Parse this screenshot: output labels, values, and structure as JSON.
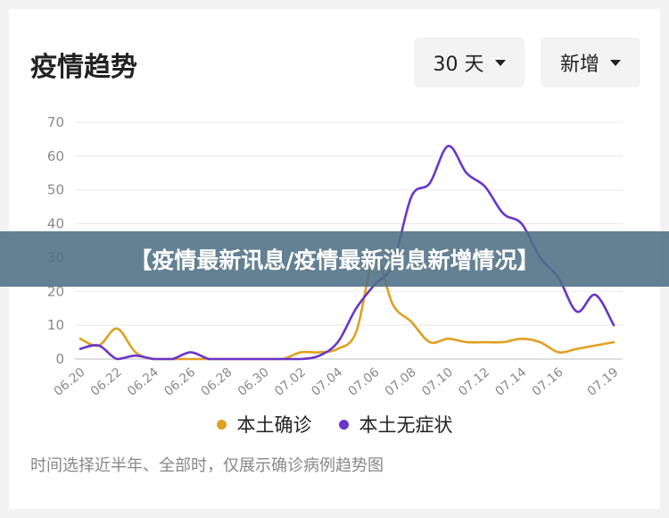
{
  "header": {
    "title": "疫情趋势",
    "range_dropdown": "30 天",
    "metric_dropdown": "新增"
  },
  "banner": {
    "text": "【疫情最新讯息/疫情最新消息新增情况】"
  },
  "footnote": "时间选择近半年、全部时，仅展示确诊病例趋势图",
  "colors": {
    "local_confirmed": "#e0a020",
    "local_asymptomatic": "#6a35c9"
  },
  "chart_data": {
    "type": "line",
    "title": "",
    "xlabel": "",
    "ylabel": "",
    "ylim": [
      0,
      70
    ],
    "yticks": [
      0,
      10,
      20,
      30,
      40,
      50,
      60,
      70
    ],
    "grid": true,
    "legend_position": "bottom",
    "x": [
      "06.20",
      "06.21",
      "06.22",
      "06.23",
      "06.24",
      "06.25",
      "06.26",
      "06.27",
      "06.28",
      "06.29",
      "06.30",
      "07.01",
      "07.02",
      "07.03",
      "07.04",
      "07.05",
      "07.06",
      "07.07",
      "07.08",
      "07.09",
      "07.10",
      "07.11",
      "07.12",
      "07.13",
      "07.14",
      "07.15",
      "07.16",
      "07.17",
      "07.18",
      "07.19"
    ],
    "xtick_labels": [
      "06.20",
      "06.22",
      "06.24",
      "06.26",
      "06.28",
      "06.30",
      "07.02",
      "07.04",
      "07.06",
      "07.08",
      "07.10",
      "07.12",
      "07.14",
      "07.16",
      "07.19"
    ],
    "series": [
      {
        "name": "本土确诊",
        "color": "#e0a020",
        "values": [
          6,
          4,
          9,
          2,
          0,
          0,
          0,
          0,
          0,
          0,
          0,
          0,
          2,
          2,
          3,
          8,
          30,
          16,
          11,
          5,
          6,
          5,
          5,
          5,
          6,
          5,
          2,
          3,
          4,
          5
        ]
      },
      {
        "name": "本土无症状",
        "color": "#6a35c9",
        "values": [
          3,
          4,
          0,
          1,
          0,
          0,
          2,
          0,
          0,
          0,
          0,
          0,
          0,
          1,
          5,
          15,
          22,
          28,
          48,
          52,
          63,
          55,
          51,
          43,
          40,
          30,
          24,
          14,
          19,
          10
        ]
      }
    ]
  }
}
